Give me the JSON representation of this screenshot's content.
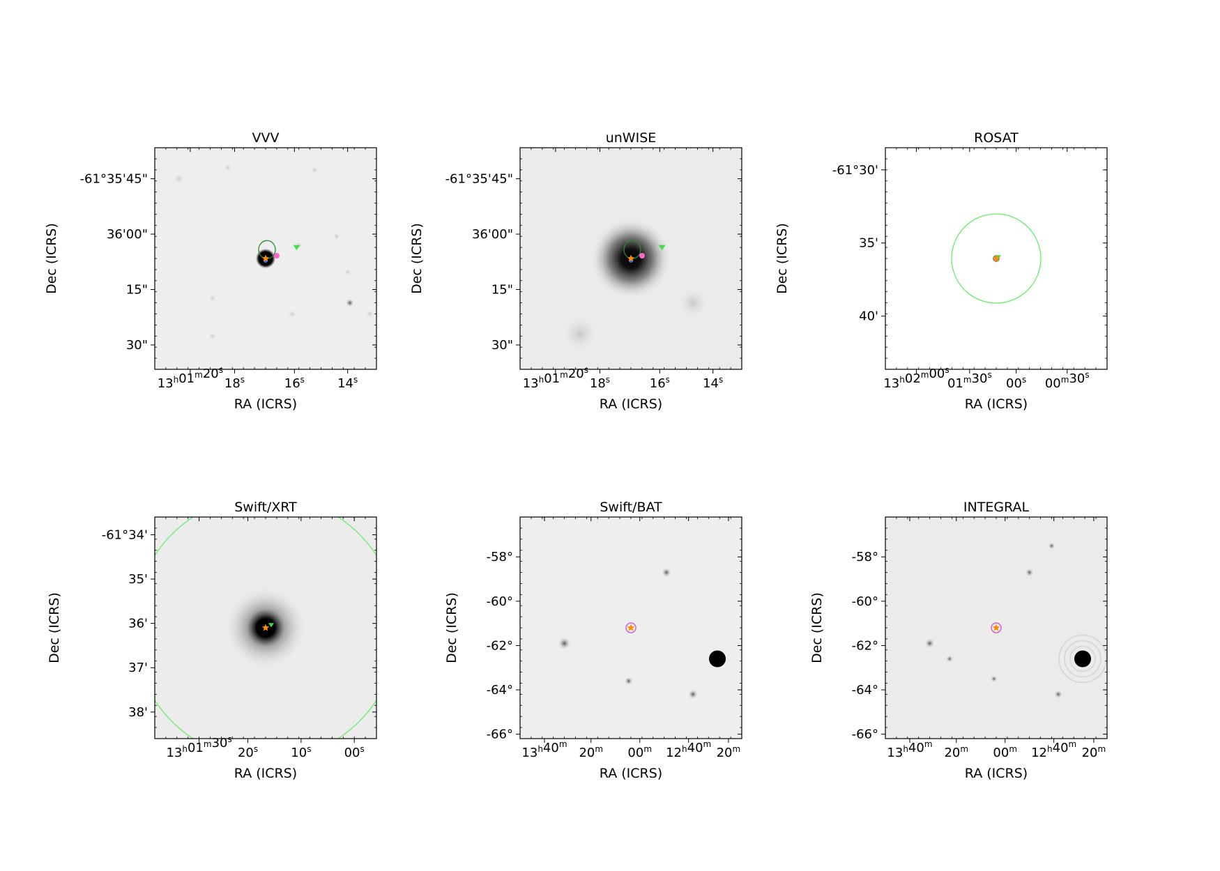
{
  "figure": {
    "panels": [
      {
        "title": "VVV",
        "xlabel": "RA (ICRS)",
        "ylabel": "Dec (ICRS)",
        "xticks": [
          "13h01m20s",
          "18s",
          "16s",
          "14s"
        ],
        "yticks": [
          "-61°35'45\"",
          "36'00\"",
          "15\"",
          "30\""
        ],
        "background": "#eeeeee",
        "source": "compact-black"
      },
      {
        "title": "unWISE",
        "xlabel": "RA (ICRS)",
        "ylabel": "Dec (ICRS)",
        "xticks": [
          "13h01m20s",
          "18s",
          "16s",
          "14s"
        ],
        "yticks": [
          "-61°35'45\"",
          "36'00\"",
          "15\"",
          "30\""
        ],
        "background": "#ebebeb",
        "source": "broad-halo"
      },
      {
        "title": "ROSAT",
        "xlabel": "RA (ICRS)",
        "ylabel": "Dec (ICRS)",
        "xticks": [
          "13h02m00s",
          "01m30s",
          "00s",
          "00m30s"
        ],
        "yticks": [
          "-61°30'",
          "35'",
          "40'"
        ],
        "background": "#ffffff",
        "source": "large-circle"
      },
      {
        "title": "Swift/XRT",
        "xlabel": "RA (ICRS)",
        "ylabel": "Dec (ICRS)",
        "xticks": [
          "13h01m30s",
          "20s",
          "10s",
          "00s"
        ],
        "yticks": [
          "-61°34'",
          "35'",
          "36'",
          "37'",
          "38'"
        ],
        "background": "#ececec",
        "source": "diffuse-spot"
      },
      {
        "title": "Swift/BAT",
        "xlabel": "RA (ICRS)",
        "ylabel": "Dec (ICRS)",
        "xticks": [
          "13h40m",
          "20m",
          "00m",
          "12h40m",
          "20m"
        ],
        "yticks": [
          "-58°",
          "-60°",
          "-62°",
          "-64°",
          "-66°"
        ],
        "background": "#eeeeee",
        "source": "wide-field"
      },
      {
        "title": "INTEGRAL",
        "xlabel": "RA (ICRS)",
        "ylabel": "Dec (ICRS)",
        "xticks": [
          "13h40m",
          "20m",
          "00m",
          "12h40m",
          "20m"
        ],
        "yticks": [
          "-58°",
          "-60°",
          "-62°",
          "-64°",
          "-66°"
        ],
        "background": "#ebebeb",
        "source": "wide-field-rings"
      }
    ],
    "colors": {
      "marker_star": "#ff8c00",
      "marker_pink": "#ff66cc",
      "marker_green": "#44dd44",
      "circle_green": "#66ee66",
      "marker_blue": "#3366ff"
    }
  }
}
